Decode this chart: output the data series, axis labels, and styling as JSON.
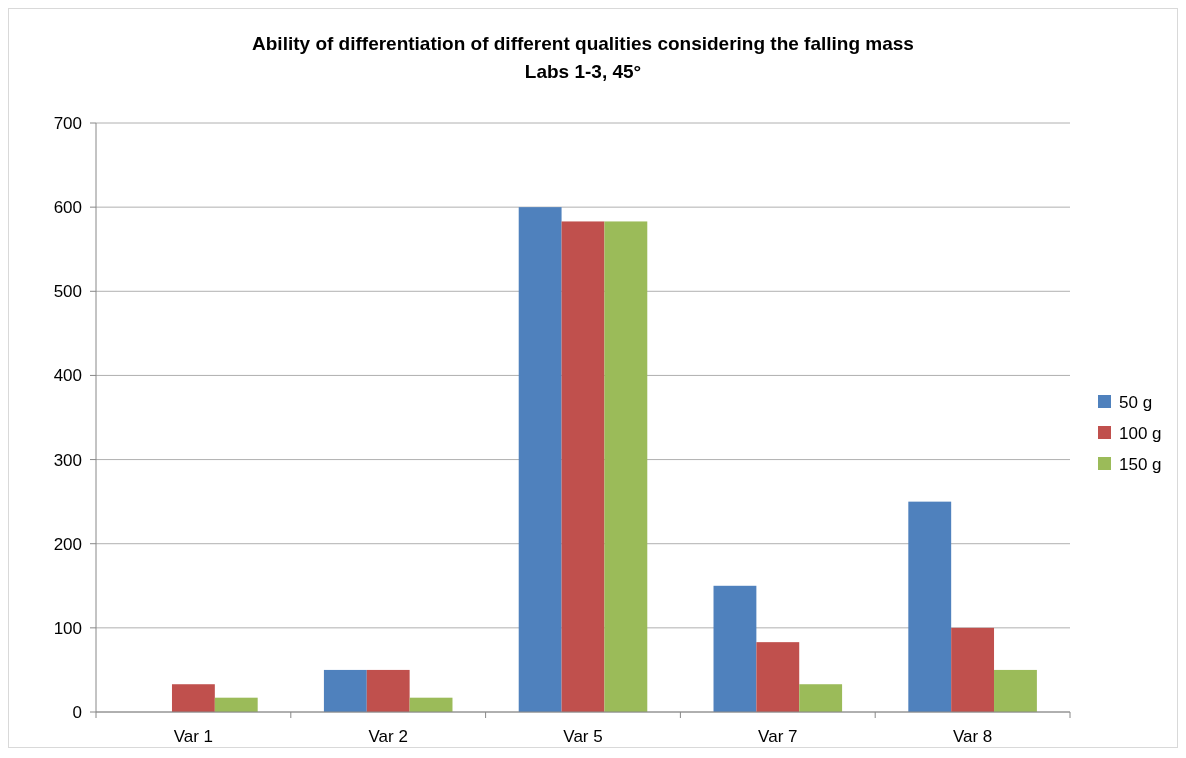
{
  "chart_data": {
    "type": "bar",
    "title": "Ability of differentiation of different qualities considering the falling mass",
    "subtitle": "Labs 1-3, 45°",
    "categories": [
      "Var 1",
      "Var 2",
      "Var 5",
      "Var 7",
      "Var 8"
    ],
    "series": [
      {
        "name": "50 g",
        "color": "#4f81bd",
        "values": [
          0,
          50,
          600,
          150,
          250
        ]
      },
      {
        "name": "100 g",
        "color": "#c0504d",
        "values": [
          33,
          50,
          583,
          83,
          100
        ]
      },
      {
        "name": "150 g",
        "color": "#9bbb59",
        "values": [
          17,
          17,
          583,
          33,
          50
        ]
      }
    ],
    "ylim": [
      0,
      700
    ],
    "yticks": [
      0,
      100,
      200,
      300,
      400,
      500,
      600,
      700
    ],
    "grid": "y",
    "legend": "right"
  }
}
